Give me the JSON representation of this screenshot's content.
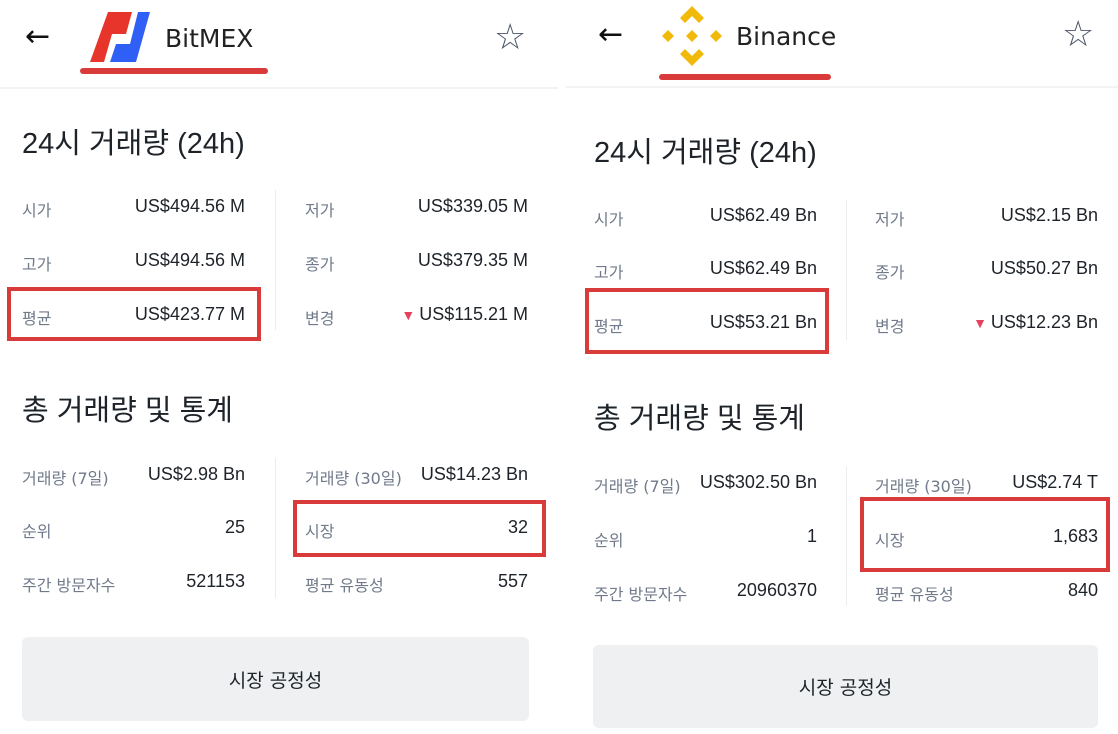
{
  "panels": [
    {
      "exchange": "BitMEX",
      "section1_title": "24시 거래량 (24h)",
      "stats24h": {
        "open_label": "시가",
        "open": "US$494.56 M",
        "high_label": "고가",
        "high": "US$494.56 M",
        "avg_label": "평균",
        "avg": "US$423.77 M",
        "low_label": "저가",
        "low": "US$339.05 M",
        "close_label": "종가",
        "close": "US$379.35 M",
        "change_label": "변경",
        "change": "US$115.21 M"
      },
      "section2_title": "총 거래량 및 통계",
      "totals": {
        "vol7_label": "거래량 (7일)",
        "vol7": "US$2.98 Bn",
        "rank_label": "순위",
        "rank": "25",
        "visitors_label": "주간 방문자수",
        "visitors": "521153",
        "vol30_label": "거래량 (30일)",
        "vol30": "US$14.23 Bn",
        "markets_label": "시장",
        "markets": "32",
        "liq_label": "평균 유동성",
        "liq": "557"
      },
      "button": "시장 공정성"
    },
    {
      "exchange": "Binance",
      "section1_title": "24시 거래량 (24h)",
      "stats24h": {
        "open_label": "시가",
        "open": "US$62.49 Bn",
        "high_label": "고가",
        "high": "US$62.49 Bn",
        "avg_label": "평균",
        "avg": "US$53.21 Bn",
        "low_label": "저가",
        "low": "US$2.15 Bn",
        "close_label": "종가",
        "close": "US$50.27 Bn",
        "change_label": "변경",
        "change": "US$12.23 Bn"
      },
      "section2_title": "총 거래량 및 통계",
      "totals": {
        "vol7_label": "거래량 (7일)",
        "vol7": "US$302.50 Bn",
        "rank_label": "순위",
        "rank": "1",
        "visitors_label": "주간 방문자수",
        "visitors": "20960370",
        "vol30_label": "거래량 (30일)",
        "vol30": "US$2.74 T",
        "markets_label": "시장",
        "markets": "1,683",
        "liq_label": "평균 유동성",
        "liq": "840"
      },
      "button": "시장 공정성"
    }
  ],
  "colors": {
    "highlight": "#d93a3a",
    "bitmex_red": "#e8352b",
    "bitmex_blue": "#2f5ff5",
    "binance_yellow": "#f0b90b",
    "down": "#e4405f"
  }
}
